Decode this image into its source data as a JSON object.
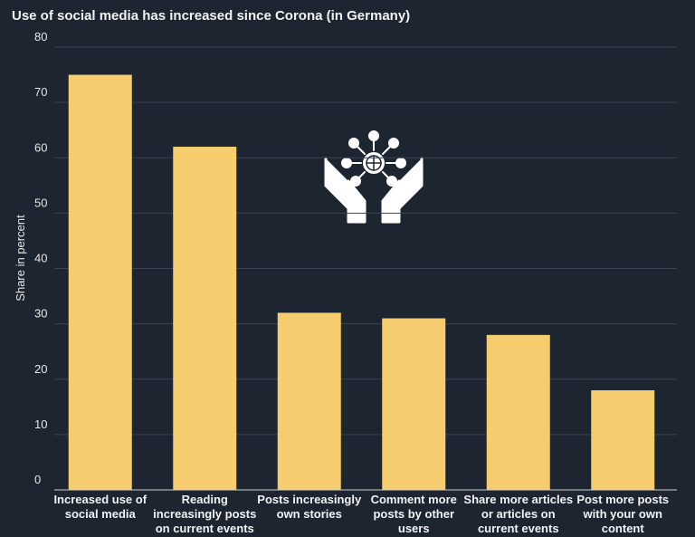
{
  "chart_data": {
    "type": "bar",
    "title": "Use of social media has increased since Corona (in Germany)",
    "y_label": "Share in percent",
    "categories": [
      "Increased use of social media",
      "Reading increasingly posts on current events",
      "Posts increasingly own stories",
      "Comment more posts by other users",
      "Share more articles or articles on current events",
      "Post more posts with your own content"
    ],
    "values": [
      75,
      62,
      32,
      31,
      28,
      18
    ],
    "color": "#f5cd6e",
    "ylim": [
      0,
      80
    ],
    "yticks": [
      0,
      10,
      20,
      30,
      40,
      50,
      60,
      70,
      80
    ],
    "grid": true
  }
}
